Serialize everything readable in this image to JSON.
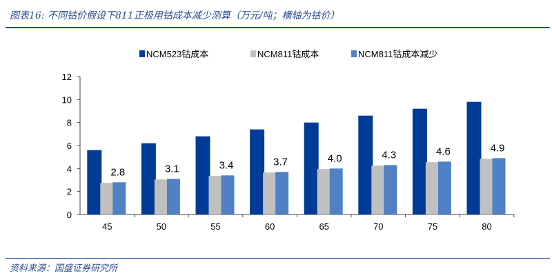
{
  "title": "图表16: 不同钴价假设下811正极用钴成本减少测算（万元/吨；横轴为钴价）",
  "source": "资料来源：国盛证券研究所",
  "chart_data": {
    "type": "bar",
    "categories": [
      "45",
      "50",
      "55",
      "60",
      "65",
      "70",
      "75",
      "80"
    ],
    "series": [
      {
        "name": "NCM523钴成本",
        "color": "#003c96",
        "values": [
          5.6,
          6.2,
          6.8,
          7.4,
          8.0,
          8.6,
          9.2,
          9.8
        ]
      },
      {
        "name": "NCM811钴成本",
        "color": "#c0c0c0",
        "values": [
          2.75,
          3.05,
          3.35,
          3.65,
          3.95,
          4.25,
          4.55,
          4.85
        ]
      },
      {
        "name": "NCM811钴成本减少",
        "color": "#4f81c4",
        "values": [
          2.8,
          3.1,
          3.4,
          3.7,
          4.0,
          4.3,
          4.6,
          4.9
        ]
      }
    ],
    "data_labels": [
      "2.8",
      "3.1",
      "3.4",
      "3.7",
      "4.0",
      "4.3",
      "4.6",
      "4.9"
    ],
    "yticks": [
      "0",
      "2",
      "4",
      "6",
      "8",
      "10",
      "12"
    ],
    "ylim": [
      0,
      12
    ],
    "legend": "top",
    "grid": false,
    "xlabel": "",
    "ylabel": ""
  }
}
